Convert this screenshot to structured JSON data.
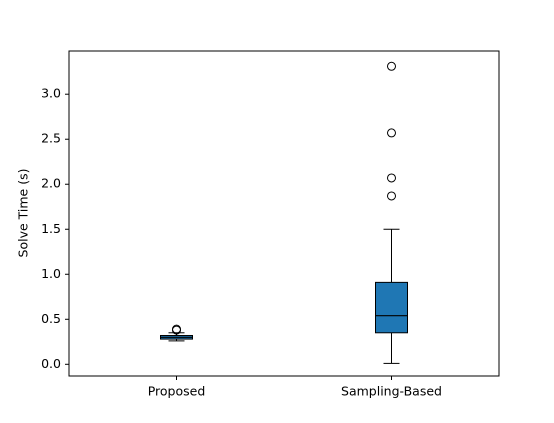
{
  "chart_data": {
    "type": "box",
    "y_label": "Solve Time (s)",
    "categories": [
      "Proposed",
      "Sampling-Based"
    ],
    "color": "#1f77b4",
    "boxes": [
      {
        "whislo": 0.26,
        "q1": 0.28,
        "med": 0.3,
        "q3": 0.32,
        "whishi": 0.35,
        "fliers": [
          0.38,
          0.39
        ]
      },
      {
        "whislo": 0.01,
        "q1": 0.35,
        "med": 0.54,
        "q3": 0.91,
        "whishi": 1.5,
        "fliers": [
          1.87,
          2.07,
          2.57,
          3.31
        ]
      }
    ],
    "ylim": [
      -0.13,
      3.48
    ],
    "yticks": [
      {
        "value": 0,
        "label": "0.0"
      },
      {
        "value": 0.5,
        "label": "0.5"
      },
      {
        "value": 1,
        "label": "1.0"
      },
      {
        "value": 1.5,
        "label": "1.5"
      },
      {
        "value": 2,
        "label": "2.0"
      },
      {
        "value": 2.5,
        "label": "2.5"
      },
      {
        "value": 3,
        "label": "3.0"
      }
    ]
  }
}
